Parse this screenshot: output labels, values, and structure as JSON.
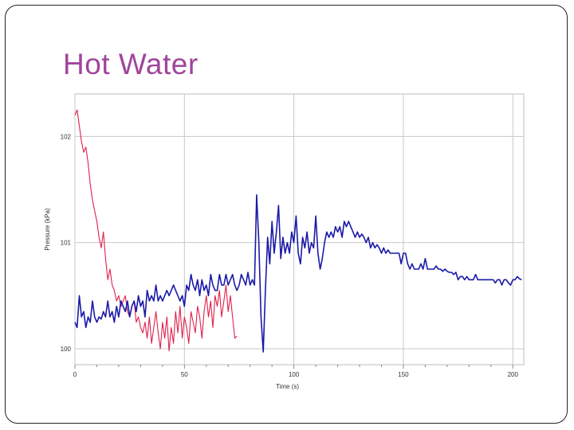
{
  "slide": {
    "title": "Hot Water"
  },
  "chart_data": {
    "type": "line",
    "title": "",
    "xlabel": "Time (s)",
    "ylabel": "Pressure (kPa)",
    "xlim": [
      0,
      205
    ],
    "ylim": [
      99.85,
      102.4
    ],
    "xticks": [
      0,
      50,
      100,
      150,
      200
    ],
    "xtick_labels": [
      "0",
      "50",
      "100",
      "150",
      "200"
    ],
    "yticks": [
      100,
      101,
      102
    ],
    "ytick_labels": [
      "100",
      "101",
      "102"
    ],
    "grid": true,
    "series": [
      {
        "name": "red",
        "color": "#e0204a",
        "points": [
          [
            0,
            102.2
          ],
          [
            1,
            102.25
          ],
          [
            2,
            102.1
          ],
          [
            3,
            101.95
          ],
          [
            4,
            101.85
          ],
          [
            5,
            101.9
          ],
          [
            6,
            101.75
          ],
          [
            7,
            101.55
          ],
          [
            8,
            101.4
          ],
          [
            9,
            101.3
          ],
          [
            10,
            101.2
          ],
          [
            11,
            101.05
          ],
          [
            12,
            100.95
          ],
          [
            13,
            101.1
          ],
          [
            14,
            100.85
          ],
          [
            15,
            100.65
          ],
          [
            16,
            100.75
          ],
          [
            17,
            100.6
          ],
          [
            18,
            100.55
          ],
          [
            19,
            100.45
          ],
          [
            20,
            100.5
          ],
          [
            21,
            100.4
          ],
          [
            22,
            100.45
          ],
          [
            23,
            100.5
          ],
          [
            24,
            100.35
          ],
          [
            25,
            100.3
          ],
          [
            26,
            100.4
          ],
          [
            27,
            100.45
          ],
          [
            28,
            100.25
          ],
          [
            29,
            100.3
          ],
          [
            30,
            100.2
          ],
          [
            31,
            100.15
          ],
          [
            32,
            100.25
          ],
          [
            33,
            100.1
          ],
          [
            34,
            100.3
          ],
          [
            35,
            100.05
          ],
          [
            36,
            100.2
          ],
          [
            37,
            100.35
          ],
          [
            38,
            100.15
          ],
          [
            39,
            100.0
          ],
          [
            40,
            100.25
          ],
          [
            41,
            100.1
          ],
          [
            42,
            100.3
          ],
          [
            43,
            99.98
          ],
          [
            44,
            100.2
          ],
          [
            45,
            100.05
          ],
          [
            46,
            100.35
          ],
          [
            47,
            100.15
          ],
          [
            48,
            100.4
          ],
          [
            49,
            100.1
          ],
          [
            50,
            100.3
          ],
          [
            51,
            100.2
          ],
          [
            52,
            100.05
          ],
          [
            53,
            100.35
          ],
          [
            54,
            100.25
          ],
          [
            55,
            100.15
          ],
          [
            56,
            100.4
          ],
          [
            57,
            100.3
          ],
          [
            58,
            100.1
          ],
          [
            59,
            100.35
          ],
          [
            60,
            100.5
          ],
          [
            61,
            100.3
          ],
          [
            62,
            100.45
          ],
          [
            63,
            100.2
          ],
          [
            64,
            100.5
          ],
          [
            65,
            100.4
          ],
          [
            66,
            100.55
          ],
          [
            67,
            100.3
          ],
          [
            68,
            100.45
          ],
          [
            69,
            100.6
          ],
          [
            70,
            100.35
          ],
          [
            71,
            100.5
          ],
          [
            72,
            100.3
          ],
          [
            73,
            100.1
          ],
          [
            74,
            100.12
          ]
        ]
      },
      {
        "name": "blue",
        "color": "#1a1aa8",
        "points": [
          [
            0,
            100.25
          ],
          [
            1,
            100.2
          ],
          [
            2,
            100.5
          ],
          [
            3,
            100.3
          ],
          [
            4,
            100.35
          ],
          [
            5,
            100.2
          ],
          [
            6,
            100.3
          ],
          [
            7,
            100.25
          ],
          [
            8,
            100.45
          ],
          [
            9,
            100.3
          ],
          [
            10,
            100.25
          ],
          [
            11,
            100.3
          ],
          [
            12,
            100.28
          ],
          [
            13,
            100.35
          ],
          [
            14,
            100.3
          ],
          [
            15,
            100.45
          ],
          [
            16,
            100.3
          ],
          [
            17,
            100.35
          ],
          [
            18,
            100.25
          ],
          [
            19,
            100.4
          ],
          [
            20,
            100.3
          ],
          [
            21,
            100.45
          ],
          [
            22,
            100.4
          ],
          [
            23,
            100.35
          ],
          [
            24,
            100.45
          ],
          [
            25,
            100.3
          ],
          [
            26,
            100.4
          ],
          [
            27,
            100.45
          ],
          [
            28,
            100.35
          ],
          [
            29,
            100.5
          ],
          [
            30,
            100.4
          ],
          [
            31,
            100.45
          ],
          [
            32,
            100.3
          ],
          [
            33,
            100.55
          ],
          [
            34,
            100.45
          ],
          [
            35,
            100.5
          ],
          [
            36,
            100.45
          ],
          [
            37,
            100.6
          ],
          [
            38,
            100.45
          ],
          [
            39,
            100.5
          ],
          [
            40,
            100.45
          ],
          [
            41,
            100.5
          ],
          [
            42,
            100.55
          ],
          [
            43,
            100.5
          ],
          [
            44,
            100.55
          ],
          [
            45,
            100.6
          ],
          [
            46,
            100.55
          ],
          [
            47,
            100.5
          ],
          [
            48,
            100.45
          ],
          [
            49,
            100.5
          ],
          [
            50,
            100.4
          ],
          [
            51,
            100.6
          ],
          [
            52,
            100.55
          ],
          [
            53,
            100.7
          ],
          [
            54,
            100.6
          ],
          [
            55,
            100.55
          ],
          [
            56,
            100.65
          ],
          [
            57,
            100.5
          ],
          [
            58,
            100.65
          ],
          [
            59,
            100.55
          ],
          [
            60,
            100.6
          ],
          [
            61,
            100.5
          ],
          [
            62,
            100.7
          ],
          [
            63,
            100.6
          ],
          [
            64,
            100.55
          ],
          [
            65,
            100.55
          ],
          [
            66,
            100.7
          ],
          [
            67,
            100.6
          ],
          [
            68,
            100.6
          ],
          [
            69,
            100.7
          ],
          [
            70,
            100.6
          ],
          [
            71,
            100.65
          ],
          [
            72,
            100.7
          ],
          [
            73,
            100.6
          ],
          [
            74,
            100.55
          ],
          [
            75,
            100.6
          ],
          [
            76,
            100.7
          ],
          [
            77,
            100.65
          ],
          [
            78,
            100.6
          ],
          [
            79,
            100.72
          ],
          [
            80,
            100.6
          ],
          [
            81,
            100.65
          ],
          [
            82,
            100.6
          ],
          [
            83,
            101.45
          ],
          [
            84,
            101.0
          ],
          [
            85,
            100.3
          ],
          [
            86,
            99.97
          ],
          [
            87,
            100.55
          ],
          [
            88,
            101.05
          ],
          [
            89,
            100.8
          ],
          [
            90,
            101.2
          ],
          [
            91,
            100.9
          ],
          [
            92,
            101.1
          ],
          [
            93,
            101.35
          ],
          [
            94,
            100.85
          ],
          [
            95,
            101.05
          ],
          [
            96,
            100.9
          ],
          [
            97,
            101.0
          ],
          [
            98,
            100.9
          ],
          [
            99,
            101.1
          ],
          [
            100,
            101.0
          ],
          [
            101,
            101.25
          ],
          [
            102,
            100.9
          ],
          [
            103,
            100.8
          ],
          [
            104,
            101.05
          ],
          [
            105,
            100.95
          ],
          [
            106,
            101.1
          ],
          [
            107,
            100.9
          ],
          [
            108,
            101.0
          ],
          [
            109,
            100.95
          ],
          [
            110,
            101.25
          ],
          [
            111,
            100.9
          ],
          [
            112,
            100.75
          ],
          [
            113,
            100.85
          ],
          [
            114,
            101.0
          ],
          [
            115,
            101.1
          ],
          [
            116,
            101.05
          ],
          [
            117,
            101.1
          ],
          [
            118,
            101.05
          ],
          [
            119,
            101.15
          ],
          [
            120,
            101.1
          ],
          [
            121,
            101.15
          ],
          [
            122,
            101.05
          ],
          [
            123,
            101.2
          ],
          [
            124,
            101.15
          ],
          [
            125,
            101.2
          ],
          [
            126,
            101.15
          ],
          [
            127,
            101.1
          ],
          [
            128,
            101.05
          ],
          [
            129,
            101.1
          ],
          [
            130,
            101.05
          ],
          [
            131,
            101.08
          ],
          [
            132,
            101.05
          ],
          [
            133,
            101.0
          ],
          [
            134,
            101.05
          ],
          [
            135,
            100.95
          ],
          [
            136,
            101.0
          ],
          [
            137,
            100.95
          ],
          [
            138,
            100.98
          ],
          [
            139,
            100.95
          ],
          [
            140,
            100.9
          ],
          [
            141,
            100.95
          ],
          [
            142,
            100.9
          ],
          [
            143,
            100.93
          ],
          [
            144,
            100.9
          ],
          [
            145,
            100.9
          ],
          [
            146,
            100.9
          ],
          [
            147,
            100.9
          ],
          [
            148,
            100.9
          ],
          [
            149,
            100.8
          ],
          [
            150,
            100.9
          ],
          [
            151,
            100.9
          ],
          [
            152,
            100.8
          ],
          [
            153,
            100.75
          ],
          [
            154,
            100.8
          ],
          [
            155,
            100.75
          ],
          [
            156,
            100.75
          ],
          [
            157,
            100.75
          ],
          [
            158,
            100.8
          ],
          [
            159,
            100.75
          ],
          [
            160,
            100.85
          ],
          [
            161,
            100.75
          ],
          [
            162,
            100.75
          ],
          [
            163,
            100.75
          ],
          [
            164,
            100.75
          ],
          [
            165,
            100.78
          ],
          [
            166,
            100.75
          ],
          [
            167,
            100.75
          ],
          [
            168,
            100.73
          ],
          [
            169,
            100.75
          ],
          [
            170,
            100.73
          ],
          [
            171,
            100.72
          ],
          [
            172,
            100.72
          ],
          [
            173,
            100.7
          ],
          [
            174,
            100.72
          ],
          [
            175,
            100.65
          ],
          [
            176,
            100.68
          ],
          [
            177,
            100.68
          ],
          [
            178,
            100.65
          ],
          [
            179,
            100.68
          ],
          [
            180,
            100.65
          ],
          [
            181,
            100.65
          ],
          [
            182,
            100.65
          ],
          [
            183,
            100.7
          ],
          [
            184,
            100.65
          ],
          [
            185,
            100.65
          ],
          [
            186,
            100.65
          ],
          [
            187,
            100.65
          ],
          [
            188,
            100.65
          ],
          [
            189,
            100.65
          ],
          [
            190,
            100.65
          ],
          [
            191,
            100.65
          ],
          [
            192,
            100.62
          ],
          [
            193,
            100.65
          ],
          [
            194,
            100.65
          ],
          [
            195,
            100.6
          ],
          [
            196,
            100.65
          ],
          [
            197,
            100.65
          ],
          [
            198,
            100.62
          ],
          [
            199,
            100.6
          ],
          [
            200,
            100.65
          ],
          [
            201,
            100.65
          ],
          [
            202,
            100.68
          ],
          [
            203,
            100.66
          ],
          [
            204,
            100.65
          ]
        ]
      }
    ]
  }
}
